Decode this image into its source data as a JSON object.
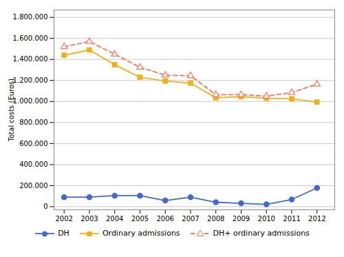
{
  "chart_data": {
    "type": "line",
    "ylabel": "Total costs (Euros)",
    "x": [
      2002,
      2003,
      2004,
      2005,
      2006,
      2007,
      2008,
      2009,
      2010,
      2011,
      2012
    ],
    "series": [
      {
        "name": "DH",
        "values": [
          90000,
          90000,
          105000,
          105000,
          58000,
          90000,
          42000,
          32000,
          22000,
          68000,
          178000
        ],
        "marker": "circle",
        "line_style": "solid"
      },
      {
        "name": "Ordinary admissions",
        "values": [
          1440000,
          1490000,
          1350000,
          1230000,
          1195000,
          1175000,
          1035000,
          1045000,
          1030000,
          1025000,
          995000
        ],
        "marker": "square",
        "line_style": "solid"
      },
      {
        "name": "DH+ ordinary admissions",
        "values": [
          1520000,
          1570000,
          1450000,
          1325000,
          1250000,
          1245000,
          1065000,
          1065000,
          1050000,
          1085000,
          1165000
        ],
        "marker": "triangle",
        "line_style": "dashed"
      }
    ],
    "xlim": [
      2001.6,
      2012.7
    ],
    "xticks": [
      2002,
      2003,
      2004,
      2005,
      2006,
      2007,
      2008,
      2009,
      2010,
      2011,
      2012
    ],
    "ylim": [
      -30000,
      1870000
    ],
    "yticks": [
      0,
      {
        "value": 200000,
        "label": "200.000"
      },
      {
        "value": 400000,
        "label": "400.000"
      },
      {
        "value": 600000,
        "label": "600.000"
      },
      {
        "value": 800000,
        "label": "800.000"
      },
      {
        "value": 1000000,
        "label": "1.000.000"
      },
      {
        "value": 1200000,
        "label": "1.200.000"
      },
      {
        "value": 1400000,
        "label": "1.400.000"
      },
      {
        "value": 1600000,
        "label": "1.600.000"
      },
      {
        "value": 1800000,
        "label": "1.800.000"
      }
    ],
    "grid": true,
    "legend": "bottom"
  }
}
